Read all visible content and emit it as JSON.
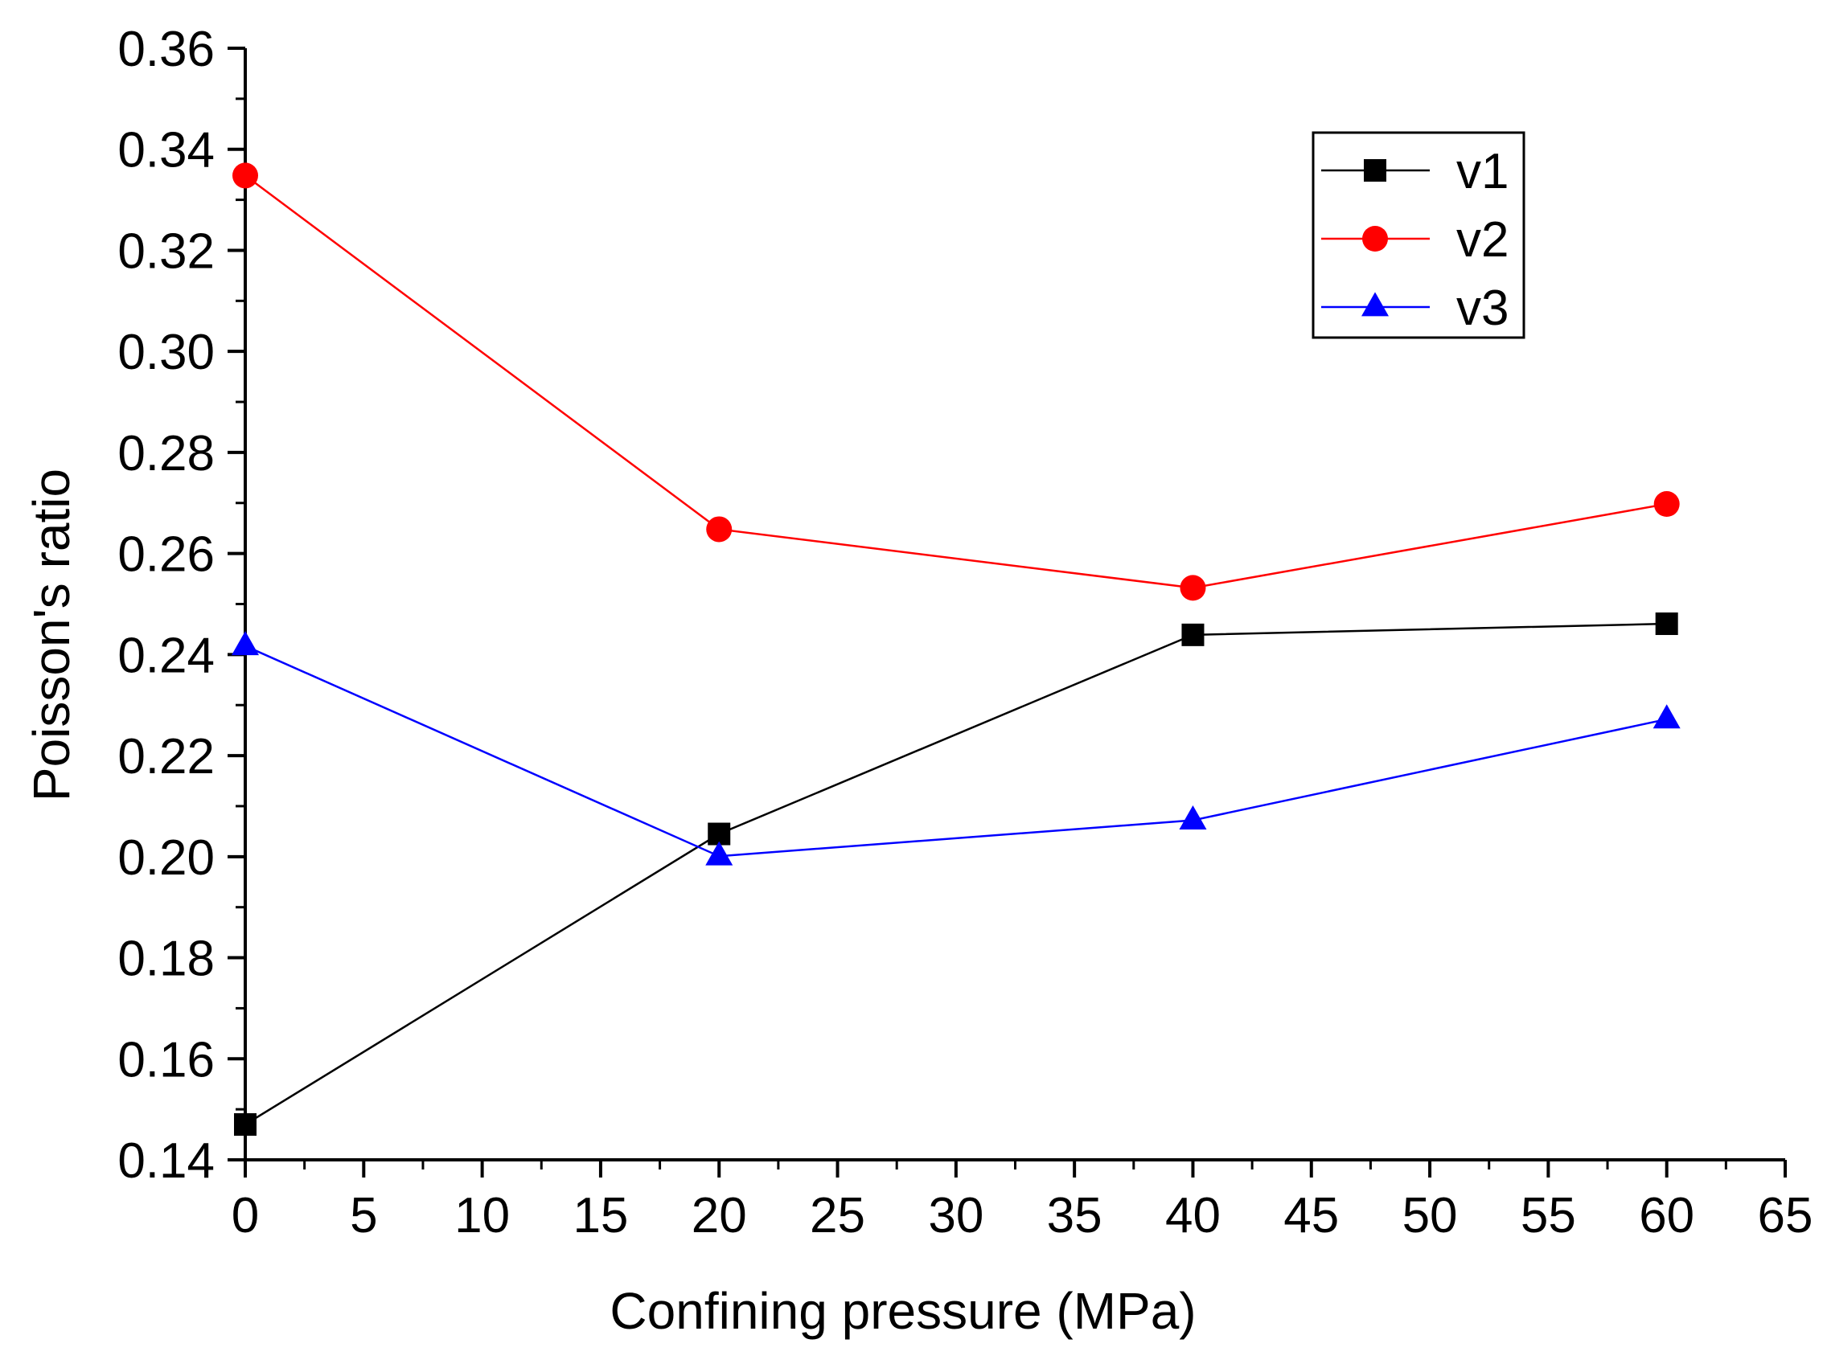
{
  "chart_data": {
    "type": "line",
    "title": "",
    "xlabel": "Confining pressure (MPa)",
    "ylabel": "Poisson's ratio",
    "xlim": [
      0,
      65
    ],
    "ylim": [
      0.14,
      0.36
    ],
    "xticks": [
      0,
      5,
      10,
      15,
      20,
      25,
      30,
      35,
      40,
      45,
      50,
      55,
      60,
      65
    ],
    "xtick_labels": [
      "0",
      "5",
      "10",
      "15",
      "20",
      "25",
      "30",
      "35",
      "40",
      "45",
      "50",
      "55",
      "60",
      "65"
    ],
    "yticks": [
      0.14,
      0.16,
      0.18,
      0.2,
      0.22,
      0.24,
      0.26,
      0.28,
      0.3,
      0.32,
      0.34,
      0.36
    ],
    "ytick_labels": [
      "0.14",
      "0.16",
      "0.18",
      "0.20",
      "0.22",
      "0.24",
      "0.26",
      "0.28",
      "0.30",
      "0.32",
      "0.34",
      "0.36"
    ],
    "grid": false,
    "legend_position": "top-right",
    "x": [
      0,
      20,
      40,
      60
    ],
    "series": [
      {
        "name": "v1",
        "color": "#000000",
        "marker": "square",
        "values": [
          0.147,
          0.2045,
          0.2439,
          0.2461
        ]
      },
      {
        "name": "v2",
        "color": "#ff0000",
        "marker": "circle",
        "values": [
          0.3348,
          0.2648,
          0.2532,
          0.2698
        ]
      },
      {
        "name": "v3",
        "color": "#0000ff",
        "marker": "triangle",
        "values": [
          0.2417,
          0.2001,
          0.2072,
          0.2272
        ]
      }
    ]
  }
}
